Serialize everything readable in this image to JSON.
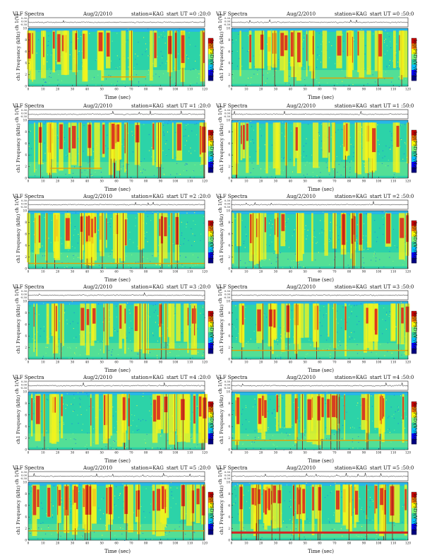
{
  "chart_data": {
    "type": "heatmap",
    "common": {
      "title": "VLF Spectra",
      "date": "Aug/2/2010",
      "station": "station=KAG",
      "xlabel": "Time (sec)",
      "ylabel_top": "ch 1(V)",
      "ylabel_bottom": "ch1 Frequency (kHz)",
      "colorbar_label": "log(PSD)(V²/Hz)",
      "xlim": [
        0,
        120
      ],
      "x_ticks": [
        0,
        10,
        20,
        30,
        40,
        50,
        60,
        70,
        80,
        90,
        100,
        110,
        120
      ],
      "y_ticks": [
        0,
        2,
        4,
        6,
        8,
        10
      ],
      "ylim": [
        0,
        10
      ],
      "trace_ticks": [
        "0.30",
        "0.00",
        "-0.30"
      ],
      "colorscale": [
        "#00007f",
        "#0000ff",
        "#00bfff",
        "#29d1a3",
        "#7fff7f",
        "#ffff00",
        "#ff7f00",
        "#cc0000"
      ]
    },
    "panels": [
      {
        "start_ut": "start UT =0 :20:0",
        "column": "left",
        "horizontal_line_khz": 1.6,
        "line_span": [
          50,
          80
        ],
        "intensity": 0.55
      },
      {
        "start_ut": "start UT =0 :50:0",
        "column": "right",
        "horizontal_line_khz": 1.4,
        "line_span": [
          60,
          110
        ],
        "intensity": 0.6
      },
      {
        "start_ut": "start UT =1 :20:0",
        "column": "left",
        "horizontal_line_khz": 1.7,
        "line_span": [
          15,
          50
        ],
        "intensity": 0.6
      },
      {
        "start_ut": "start UT =1 :50:0",
        "column": "right",
        "horizontal_line_khz": null,
        "line_span": null,
        "intensity": 0.5
      },
      {
        "start_ut": "start UT =2 :20:0",
        "column": "left",
        "horizontal_line_khz": 0.9,
        "line_span": [
          0,
          120
        ],
        "intensity": 0.65
      },
      {
        "start_ut": "start UT =2 :50:0",
        "column": "right",
        "horizontal_line_khz": null,
        "line_span": null,
        "intensity": 0.5
      },
      {
        "start_ut": "start UT =3 :20:0",
        "column": "left",
        "horizontal_line_khz": 1.7,
        "line_span": [
          80,
          120
        ],
        "intensity": 0.45
      },
      {
        "start_ut": "start UT =3 :50:0",
        "column": "right",
        "horizontal_line_khz": 1.5,
        "line_span": [
          0,
          120
        ],
        "intensity": 0.55
      },
      {
        "start_ut": "start UT =4 :20:0",
        "column": "left",
        "horizontal_line_khz": null,
        "line_span": null,
        "intensity": 0.55
      },
      {
        "start_ut": "start UT =4 :50:0",
        "column": "right",
        "horizontal_line_khz": 1.6,
        "line_span": [
          0,
          120
        ],
        "intensity": 0.7
      },
      {
        "start_ut": "start UT =5 :20:0",
        "column": "left",
        "horizontal_line_khz": 1.6,
        "line_span": [
          0,
          120
        ],
        "intensity": 0.7
      },
      {
        "start_ut": "start UT =5 :50:0",
        "column": "right",
        "horizontal_line_khz": 1.4,
        "line_span": [
          0,
          120
        ],
        "intensity": 0.85
      }
    ]
  }
}
